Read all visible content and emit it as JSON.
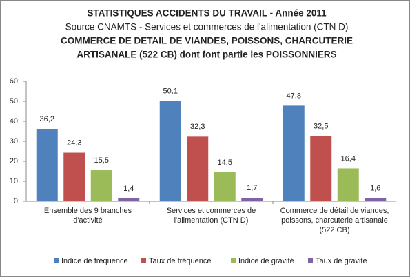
{
  "chart_data": {
    "type": "bar",
    "title_lines": [
      {
        "text": "STATISTIQUES ACCIDENTS DU TRAVAIL - Année 2011",
        "bold": true
      },
      {
        "text": "Source CNAMTS -  Services et commerces de l'alimentation (CTN D)",
        "bold": false
      },
      {
        "text": "COMMERCE DE DETAIL DE VIANDES, POISSONS, CHARCUTERIE",
        "bold": true
      },
      {
        "text": "ARTISANALE (522 CB) dont font partie les POISSONNIERS",
        "bold": true
      }
    ],
    "categories": [
      [
        "Ensemble des 9 branches",
        "d'activité"
      ],
      [
        "Services et commerces de",
        "l'alimentation (CTN D)"
      ],
      [
        "Commerce de détail de viandes,",
        "poissons, charcuterie artisanale",
        "(522 CB)"
      ]
    ],
    "series": [
      {
        "name": "Indice de fréquence",
        "color": "#4f81bd",
        "values": [
          36.2,
          50.1,
          47.8
        ],
        "value_labels": [
          "36,2",
          "50,1",
          "47,8"
        ]
      },
      {
        "name": "Taux de fréquence",
        "color": "#c0504d",
        "values": [
          24.3,
          32.3,
          32.5
        ],
        "value_labels": [
          "24,3",
          "32,3",
          "32,5"
        ]
      },
      {
        "name": "Indice de gravité",
        "color": "#9bbb59",
        "values": [
          15.5,
          14.5,
          16.4
        ],
        "value_labels": [
          "15,5",
          "14,5",
          "16,4"
        ]
      },
      {
        "name": "Taux de gravité",
        "color": "#8064a2",
        "values": [
          1.4,
          1.7,
          1.6
        ],
        "value_labels": [
          "1,4",
          "1,7",
          "1,6"
        ]
      }
    ],
    "ylim": [
      0,
      60
    ],
    "yticks": [
      0,
      10,
      20,
      30,
      40,
      50,
      60
    ],
    "grid": false,
    "legend": "bottom"
  }
}
